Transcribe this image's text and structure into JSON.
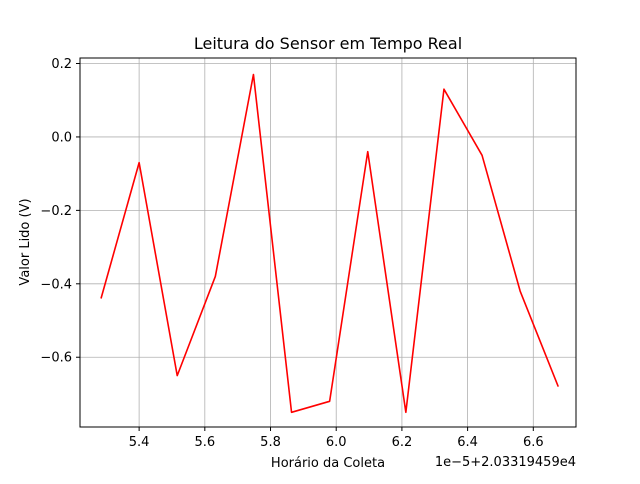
{
  "chart_data": {
    "type": "line",
    "title": "Leitura do Sensor em Tempo Real",
    "xlabel": "Horário da Coleta",
    "ylabel": "Valor Lido (V)",
    "x_offset_text": "1e−5+2.03319459e4",
    "xlim": [
      5.22,
      6.73
    ],
    "ylim": [
      -0.79,
      0.215
    ],
    "x_ticks": [
      5.4,
      5.6,
      5.8,
      6.0,
      6.2,
      6.4,
      6.6
    ],
    "x_tick_labels": [
      "5.4",
      "5.6",
      "5.8",
      "6.0",
      "6.2",
      "6.4",
      "6.6"
    ],
    "y_ticks": [
      -0.6,
      -0.4,
      -0.2,
      0.0,
      0.2
    ],
    "y_tick_labels": [
      "−0.6",
      "−0.4",
      "−0.2",
      "0.0",
      "0.2"
    ],
    "grid": true,
    "series": [
      {
        "color": "#ff0000",
        "x": [
          5.284,
          5.4,
          5.516,
          5.632,
          5.748,
          5.864,
          5.98,
          6.096,
          6.212,
          6.328,
          6.444,
          6.56,
          6.676
        ],
        "values": [
          -0.44,
          -0.07,
          -0.65,
          -0.38,
          0.17,
          -0.75,
          -0.72,
          -0.04,
          -0.75,
          0.13,
          -0.05,
          -0.42,
          -0.68
        ]
      }
    ]
  }
}
